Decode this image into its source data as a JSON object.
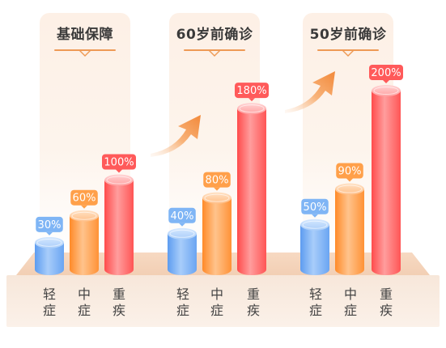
{
  "chart_data": [
    {
      "type": "bar",
      "title": "基础保障",
      "categories": [
        "轻症",
        "中症",
        "重疾"
      ],
      "values": [
        30,
        60,
        100
      ],
      "value_labels": [
        "30%",
        "60%",
        "100%"
      ],
      "ylim": [
        0,
        200
      ]
    },
    {
      "type": "bar",
      "title": "60岁前确诊",
      "categories": [
        "轻症",
        "中症",
        "重疾"
      ],
      "values": [
        40,
        80,
        180
      ],
      "value_labels": [
        "40%",
        "80%",
        "180%"
      ],
      "ylim": [
        0,
        200
      ]
    },
    {
      "type": "bar",
      "title": "50岁前确诊",
      "categories": [
        "轻症",
        "中症",
        "重疾"
      ],
      "values": [
        50,
        90,
        200
      ],
      "value_labels": [
        "50%",
        "90%",
        "200%"
      ],
      "ylim": [
        0,
        200
      ]
    }
  ],
  "colors": {
    "light": "#7fb5f5",
    "medium": "#ffa04a",
    "severe": "#ff5a5a",
    "arrow": "#f39a4c"
  },
  "icons": [
    "arrow-up-right-icon",
    "arrow-up-right-icon"
  ]
}
